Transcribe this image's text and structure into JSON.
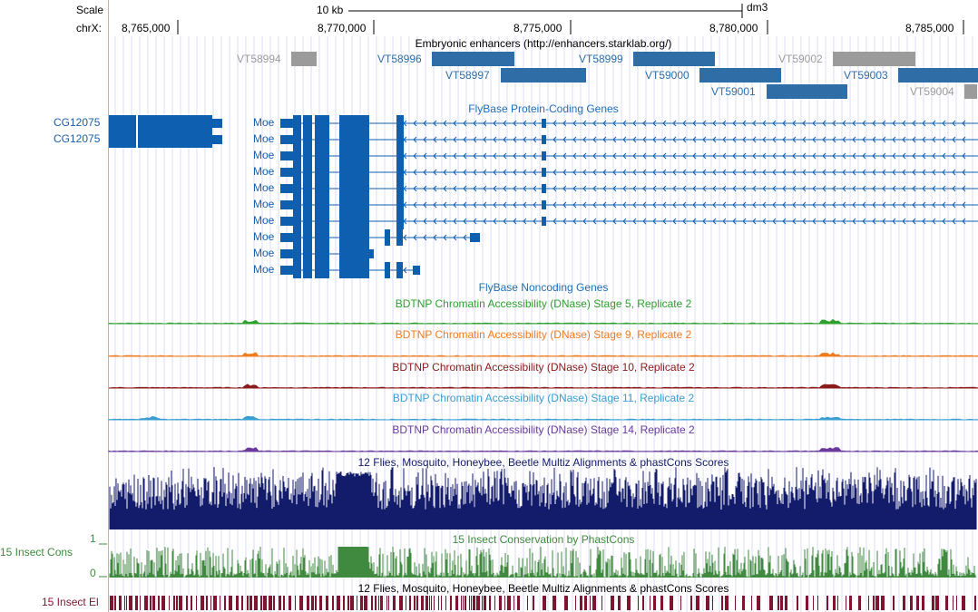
{
  "ruler": {
    "scale_label": "Scale",
    "chrom_label": "chrX:",
    "scale_bar_label": "10 kb",
    "assembly": "dm3",
    "ticks": [
      "8,765,000",
      "8,770,000",
      "8,775,000",
      "8,780,000",
      "8,785,000"
    ]
  },
  "enhancers": {
    "title": "Embryonic enhancers (http://enhancers.starklab.org/)",
    "features": [
      {
        "id": "VT58994",
        "color": "#9b9b9b"
      },
      {
        "id": "VT58996",
        "color": "#2e6da6"
      },
      {
        "id": "VT58997",
        "color": "#2e6da6"
      },
      {
        "id": "VT58999",
        "color": "#2e6da6"
      },
      {
        "id": "VT59000",
        "color": "#2e6da6"
      },
      {
        "id": "VT59001",
        "color": "#2e6da6"
      },
      {
        "id": "VT59002",
        "color": "#9b9b9b"
      },
      {
        "id": "VT59003",
        "color": "#2e6da6"
      },
      {
        "id": "VT59004",
        "color": "#9b9b9b"
      }
    ]
  },
  "protein_genes": {
    "title": "FlyBase Protein-Coding Genes",
    "color": "#0f5fb0",
    "cg_labels": [
      "CG12075",
      "CG12075"
    ],
    "moe_labels": [
      "Moe",
      "Moe",
      "Moe",
      "Moe",
      "Moe",
      "Moe",
      "Moe",
      "Moe",
      "Moe",
      "Moe"
    ]
  },
  "noncoding": {
    "title": "FlyBase Noncoding Genes"
  },
  "dnase_tracks": [
    {
      "title": "BDTNP Chromatin Accessibility (DNase) Stage 5, Replicate 2",
      "color": "#2ea02e"
    },
    {
      "title": "BDTNP Chromatin Accessibility (DNase) Stage 9, Replicate 2",
      "color": "#f07c20"
    },
    {
      "title": "BDTNP Chromatin Accessibility (DNase) Stage 10, Replicate 2",
      "color": "#8b1a1a"
    },
    {
      "title": "BDTNP Chromatin Accessibility (DNase) Stage 11, Replicate 2",
      "color": "#3a9fd0"
    },
    {
      "title": "BDTNP Chromatin Accessibility (DNase) Stage 14, Replicate 2",
      "color": "#6a3a9c"
    }
  ],
  "multiz": {
    "title": "12 Flies, Mosquito, Honeybee, Beetle Multiz Alignments & phastCons Scores",
    "color": "#131b6b"
  },
  "phastcons": {
    "title": "15 Insect Conservation by PhastCons",
    "side_label": "15 Insect Cons",
    "ymax_label": "1",
    "ymin_label": "0",
    "color": "#3f8a3f"
  },
  "elements": {
    "title": "12 Flies, Mosquito, Honeybee, Beetle Multiz Alignments & phastCons Scores",
    "side_label": "15 Insect El",
    "color": "#7d1530"
  }
}
